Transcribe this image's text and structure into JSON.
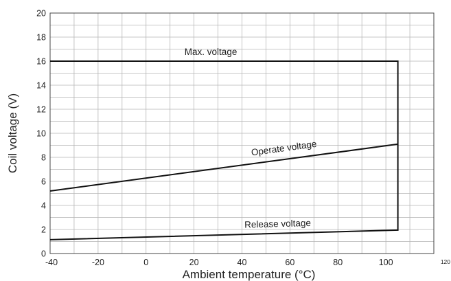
{
  "chart_data": {
    "type": "line",
    "title": "",
    "xlabel": "Ambient temperature (°C)",
    "ylabel": "Coil voltage (V)",
    "xlim": [
      -40,
      120
    ],
    "ylim": [
      0,
      20
    ],
    "x_ticks": [
      "-40",
      "-20",
      "0",
      "20",
      "40",
      "60",
      "80",
      "100",
      "120"
    ],
    "y_ticks": [
      "0",
      "2",
      "4",
      "6",
      "8",
      "10",
      "12",
      "14",
      "16",
      "18",
      "20"
    ],
    "grid": true,
    "minor_grid_x_step": 10,
    "minor_grid_y_step": 1,
    "series": [
      {
        "name": "Max. voltage",
        "x": [
          -40,
          105,
          105
        ],
        "y": [
          16,
          16,
          9.1
        ]
      },
      {
        "name": "Operate voltage",
        "x": [
          -40,
          105
        ],
        "y": [
          5.2,
          9.1
        ]
      },
      {
        "name": "Release voltage",
        "x": [
          -40,
          105,
          105
        ],
        "y": [
          1.15,
          1.95,
          9.1
        ]
      }
    ],
    "annotations": [
      {
        "text": "Max. voltage",
        "x": 27,
        "y": 16
      },
      {
        "text": "Operate voltage",
        "x": 58,
        "y": 8.0
      },
      {
        "text": "Release voltage",
        "x": 55,
        "y": 1.7
      }
    ],
    "line_color": "#111111",
    "grid_color": "#b5b5b5"
  }
}
